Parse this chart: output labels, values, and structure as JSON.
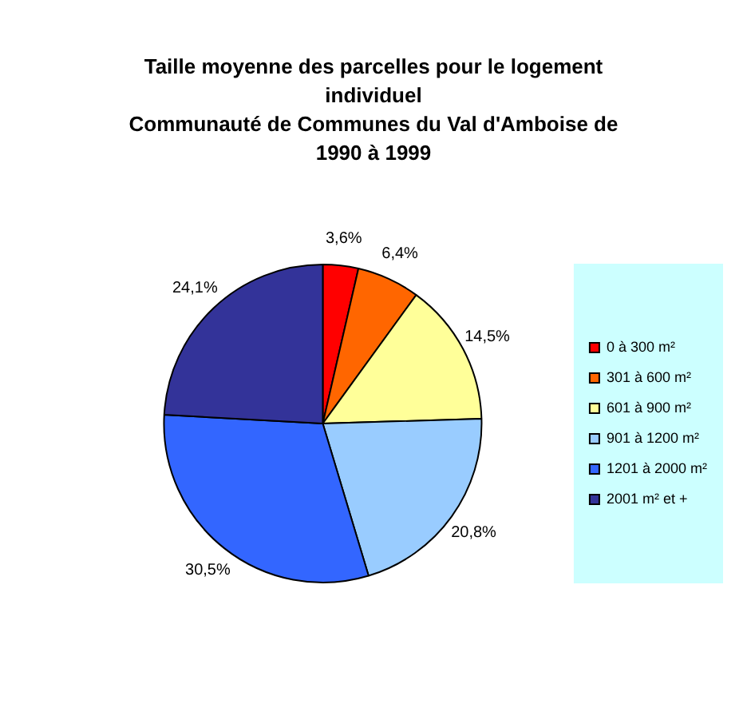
{
  "chart_data": {
    "type": "pie",
    "title": "Taille moyenne des parcelles pour le logement individuel",
    "subtitle": "Communauté de Communes du Val d'Amboise de 1990 à 1999",
    "categories": [
      "0 à 300 m²",
      "301 à 600 m²",
      "601 à 900 m²",
      "901 à 1200 m²",
      "1201 à 2000 m²",
      "2001 m² et +"
    ],
    "values": [
      3.6,
      6.4,
      14.5,
      20.8,
      30.5,
      24.1
    ],
    "value_labels": [
      "3,6%",
      "6,4%",
      "14,5%",
      "20,8%",
      "30,5%",
      "24,1%"
    ],
    "colors": [
      "#ff0000",
      "#ff6600",
      "#ffff99",
      "#99ccff",
      "#3366ff",
      "#333399"
    ],
    "legend": "right"
  }
}
